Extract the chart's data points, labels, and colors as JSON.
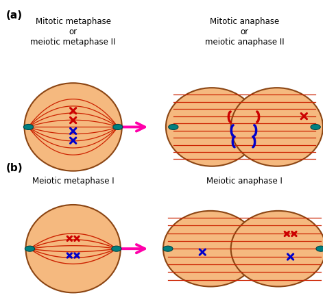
{
  "bg_color": "#ffffff",
  "cell_fill": "#F5B97F",
  "cell_edge": "#8B4513",
  "spindle_color": "#cc2200",
  "chr_red": "#cc0000",
  "chr_blue": "#0000cc",
  "arrow_color": "#ff00aa",
  "centriole_color": "#008080",
  "label_a": "(a)",
  "label_b": "(b)",
  "title_a1": "Mitotic metaphase\nor\nmeiotic metaphase II",
  "title_a2": "Mitotic anaphase\nor\nmeiotic anaphase II",
  "title_b1": "Meiotic metaphase I",
  "title_b2": "Meiotic anaphase I",
  "figsize": [
    4.74,
    4.41
  ],
  "dpi": 100
}
